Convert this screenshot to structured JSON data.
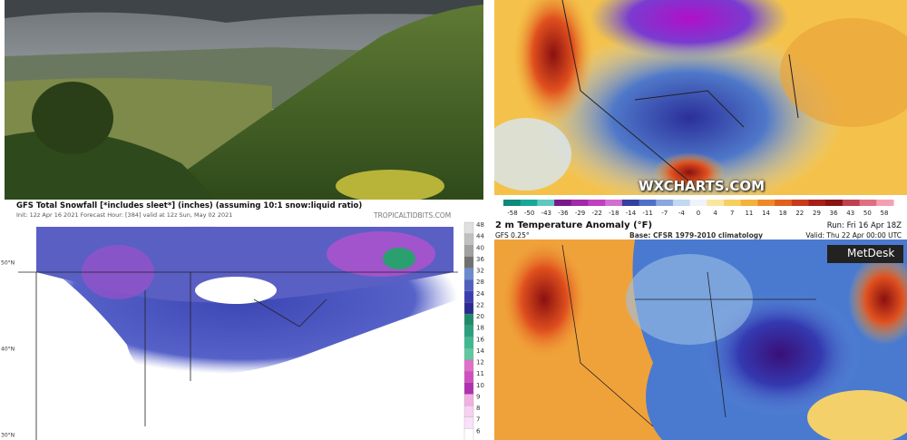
{
  "top_right_map": {
    "colorbar_labels": [
      "-58",
      "-50",
      "-43",
      "-36",
      "-29",
      "-22",
      "-18",
      "-14",
      "-11",
      "-7",
      "-4",
      "0",
      "4",
      "7",
      "11",
      "14",
      "18",
      "22",
      "29",
      "36",
      "43",
      "50",
      "58"
    ],
    "watermark": "WXCHARTS.COM"
  },
  "bottom_left_map": {
    "title": "GFS Total Snowfall [*includes sleet*] (inches) (assuming 10:1 snow:liquid ratio)",
    "subtitle": "Init: 12z Apr 16 2021   Forecast Hour: [384]   valid at 12z Sun, May 02 2021",
    "source": "TROPICALTIDBITS.COM",
    "colorbar_labels": [
      "48",
      "44",
      "40",
      "36",
      "32",
      "28",
      "24",
      "22",
      "20",
      "18",
      "16",
      "14",
      "12",
      "11",
      "10",
      "9",
      "8",
      "7",
      "6"
    ],
    "latitude_labels": [
      "50°N",
      "40°N",
      "30°N"
    ]
  },
  "bottom_right_map": {
    "title": "2 m Temperature Anomaly (°F)",
    "run": "Run: Fri 16 Apr 18Z",
    "model": "GFS 0.25°",
    "base": "Base: CFSR 1979-2010 climatology",
    "valid": "Valid: Thu 22 Apr 00:00 UTC",
    "logo": "MetDesk"
  }
}
